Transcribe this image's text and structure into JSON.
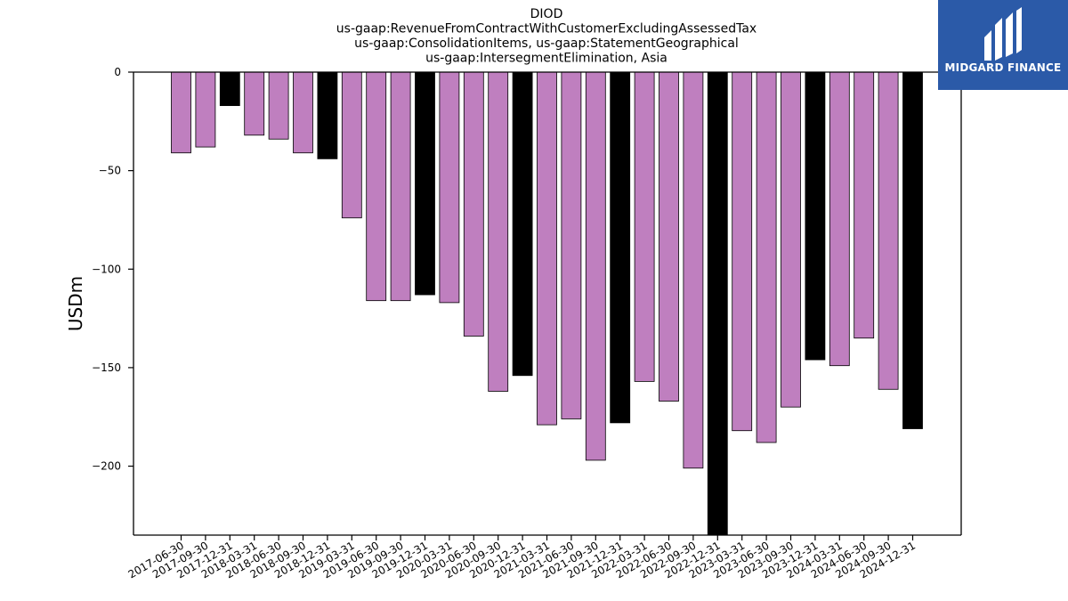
{
  "chart_data": {
    "type": "bar",
    "title_lines": [
      "DIOD",
      "us-gaap:RevenueFromContractWithCustomerExcludingAssessedTax",
      "us-gaap:ConsolidationItems, us-gaap:StatementGeographical",
      "us-gaap:IntersegmentElimination, Asia"
    ],
    "ylabel": "USDm",
    "ylim": [
      -235,
      0
    ],
    "yticks": [
      0,
      -50,
      -100,
      -150,
      -200
    ],
    "categories": [
      "2017-06-30",
      "2017-09-30",
      "2017-12-31",
      "2018-03-31",
      "2018-06-30",
      "2018-09-30",
      "2018-12-31",
      "2019-03-31",
      "2019-06-30",
      "2019-09-30",
      "2019-12-31",
      "2020-03-31",
      "2020-06-30",
      "2020-09-30",
      "2020-12-31",
      "2021-03-31",
      "2021-06-30",
      "2021-09-30",
      "2021-12-31",
      "2022-03-31",
      "2022-06-30",
      "2022-09-30",
      "2022-12-31",
      "2023-03-31",
      "2023-06-30",
      "2023-09-30",
      "2023-12-31",
      "2024-03-31",
      "2024-06-30",
      "2024-09-30",
      "2024-12-31"
    ],
    "values": [
      -41,
      -38,
      -17,
      -32,
      -34,
      -41,
      -44,
      -74,
      -116,
      -116,
      -113,
      -117,
      -134,
      -162,
      -154,
      -179,
      -176,
      -197,
      -178,
      -157,
      -167,
      -201,
      -240,
      -182,
      -188,
      -170,
      -146,
      -149,
      -135,
      -161,
      -181
    ],
    "colors": {
      "quarter": "#bf7fbf",
      "year_end": "#000000",
      "edge": "#000000"
    },
    "year_end_categories": [
      "2017-12-31",
      "2018-12-31",
      "2019-12-31",
      "2020-12-31",
      "2021-12-31",
      "2022-12-31",
      "2023-12-31",
      "2024-12-31"
    ]
  },
  "logo": {
    "text": "MIDGARD FINANCE",
    "background": "#2b5aa8"
  }
}
